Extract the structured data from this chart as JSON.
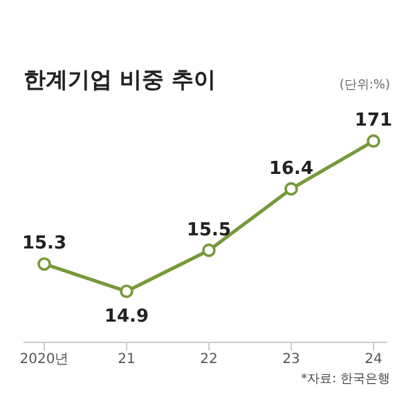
{
  "chart_data": {
    "type": "line",
    "title": "한계기업 비중 추이",
    "subtitle": "(단위:%)",
    "annotations": [
      "*자료: 한국은행",
      {
        "text": "171",
        "x": "24",
        "y": 17.1
      }
    ],
    "categories": [
      "2020년",
      "21",
      "22",
      "23",
      "24"
    ],
    "series": [
      {
        "color": "#77993a",
        "values": [
          15.3,
          14.9,
          15.5,
          16.4,
          17.1
        ],
        "value_labels": [
          "15.3",
          "14.9",
          "15.5",
          "16.4",
          null
        ]
      }
    ],
    "marker": "circle",
    "grid": false,
    "legend": false,
    "tick_labels": "x"
  }
}
